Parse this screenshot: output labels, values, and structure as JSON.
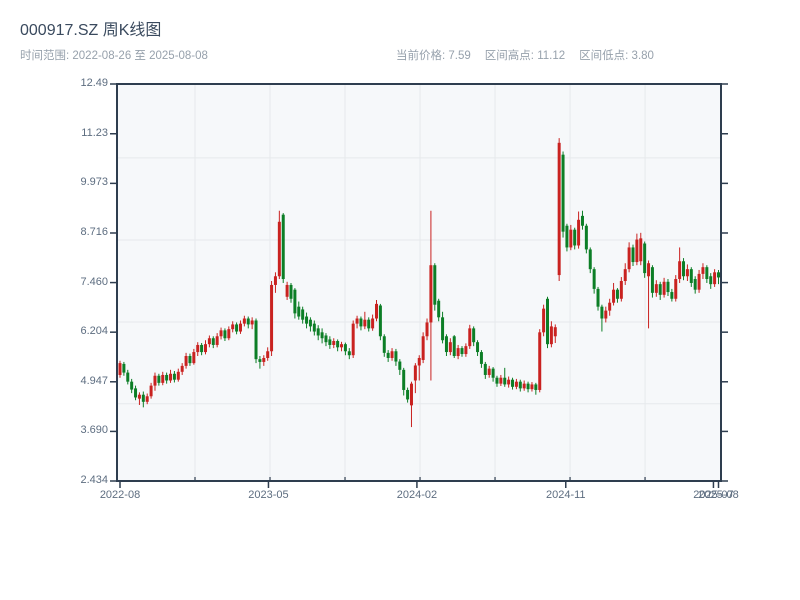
{
  "header": {
    "title": "000917.SZ 周K线图",
    "subtitle": "时间范围: 2022-08-26 至 2025-08-08",
    "stats": [
      {
        "label": "当前价格:",
        "value": "7.59"
      },
      {
        "label": "区间高点:",
        "value": "11.12"
      },
      {
        "label": "区间低点:",
        "value": "3.80"
      }
    ]
  },
  "chart_data": {
    "type": "candlestick",
    "title": "000917.SZ 周K线图",
    "symbol": "000917.SZ",
    "period": "weekly",
    "date_range": [
      "2022-08-26",
      "2025-08-08"
    ],
    "current_price": 7.59,
    "range_high": 11.12,
    "range_low": 3.8,
    "ylim": [
      2.434,
      12.49
    ],
    "grid": "on",
    "y_ticks": [
      {
        "label": "12.49",
        "value": 12.49
      },
      {
        "label": "11.23",
        "value": 11.23
      },
      {
        "label": "9.973",
        "value": 9.973
      },
      {
        "label": "8.716",
        "value": 8.716
      },
      {
        "label": "7.460",
        "value": 7.46
      },
      {
        "label": "6.204",
        "value": 6.204
      },
      {
        "label": "4.947",
        "value": 4.947
      },
      {
        "label": "3.690",
        "value": 3.69
      },
      {
        "label": "2.434",
        "value": 2.434
      }
    ],
    "x_ticks": [
      {
        "label": "2022-08",
        "week": 0
      },
      {
        "label": "2023-05",
        "week": 38.2
      },
      {
        "label": "2024-02",
        "week": 76.4
      },
      {
        "label": "2024-11",
        "week": 114.7
      },
      {
        "label": "2025-07",
        "week": 152.7
      },
      {
        "label": "2025-08",
        "week": 154.0
      }
    ],
    "grid_x_weeks": [
      19.3,
      38.6,
      57.9,
      77.2,
      96.5,
      115.8,
      135.1
    ],
    "grid_y_values": [
      10.62,
      8.54,
      6.46,
      4.39
    ],
    "colors": {
      "up": "#c92220",
      "down": "#0c7e26",
      "axis": "#2e3d4f",
      "grid": "#e6e9ec",
      "plot_bg": "#f6f8fa",
      "label": "#5d6d80"
    },
    "candles_format": [
      "open",
      "high",
      "low",
      "close"
    ],
    "candles": [
      [
        5.12,
        5.48,
        5.05,
        5.42
      ],
      [
        5.4,
        5.45,
        5.1,
        5.18
      ],
      [
        5.18,
        5.25,
        4.88,
        4.95
      ],
      [
        4.95,
        5.02,
        4.66,
        4.75
      ],
      [
        4.78,
        4.85,
        4.48,
        4.55
      ],
      [
        4.52,
        4.68,
        4.36,
        4.62
      ],
      [
        4.62,
        4.7,
        4.3,
        4.44
      ],
      [
        4.44,
        4.65,
        4.38,
        4.58
      ],
      [
        4.58,
        4.92,
        4.52,
        4.85
      ],
      [
        4.85,
        5.18,
        4.72,
        5.1
      ],
      [
        5.1,
        5.15,
        4.85,
        4.92
      ],
      [
        4.92,
        5.2,
        4.86,
        5.12
      ],
      [
        5.12,
        5.18,
        4.9,
        4.98
      ],
      [
        4.98,
        5.25,
        4.92,
        5.15
      ],
      [
        5.15,
        5.22,
        4.93,
        5.0
      ],
      [
        5.0,
        5.28,
        4.95,
        5.2
      ],
      [
        5.2,
        5.42,
        5.12,
        5.35
      ],
      [
        5.35,
        5.68,
        5.28,
        5.6
      ],
      [
        5.6,
        5.66,
        5.35,
        5.42
      ],
      [
        5.42,
        5.78,
        5.38,
        5.7
      ],
      [
        5.7,
        5.95,
        5.6,
        5.88
      ],
      [
        5.88,
        5.93,
        5.62,
        5.7
      ],
      [
        5.7,
        6.0,
        5.64,
        5.9
      ],
      [
        5.9,
        6.12,
        5.82,
        6.05
      ],
      [
        6.05,
        6.1,
        5.8,
        5.88
      ],
      [
        5.88,
        6.18,
        5.82,
        6.1
      ],
      [
        6.1,
        6.32,
        6.02,
        6.25
      ],
      [
        6.25,
        6.3,
        5.98,
        6.05
      ],
      [
        6.05,
        6.35,
        6.0,
        6.28
      ],
      [
        6.28,
        6.48,
        6.2,
        6.4
      ],
      [
        6.4,
        6.45,
        6.15,
        6.22
      ],
      [
        6.22,
        6.5,
        6.16,
        6.42
      ],
      [
        6.42,
        6.62,
        6.35,
        6.55
      ],
      [
        6.55,
        6.6,
        6.3,
        6.4
      ],
      [
        6.4,
        6.58,
        6.28,
        6.5
      ],
      [
        6.5,
        6.55,
        5.42,
        5.52
      ],
      [
        5.52,
        5.6,
        5.28,
        5.45
      ],
      [
        5.45,
        5.62,
        5.35,
        5.55
      ],
      [
        5.55,
        5.82,
        5.48,
        5.72
      ],
      [
        5.72,
        7.5,
        5.6,
        7.4
      ],
      [
        7.4,
        7.72,
        7.2,
        7.62
      ],
      [
        7.62,
        9.28,
        7.55,
        9.0
      ],
      [
        9.18,
        9.22,
        7.45,
        7.55
      ],
      [
        7.1,
        7.48,
        7.02,
        7.4
      ],
      [
        7.4,
        7.45,
        6.95,
        7.05
      ],
      [
        7.28,
        7.32,
        6.55,
        6.68
      ],
      [
        6.85,
        6.98,
        6.52,
        6.6
      ],
      [
        6.78,
        6.85,
        6.42,
        6.52
      ],
      [
        6.6,
        6.7,
        6.3,
        6.42
      ],
      [
        6.52,
        6.58,
        6.22,
        6.35
      ],
      [
        6.42,
        6.5,
        6.12,
        6.22
      ],
      [
        6.3,
        6.38,
        6.0,
        6.12
      ],
      [
        6.2,
        6.3,
        5.92,
        6.05
      ],
      [
        6.12,
        6.18,
        5.85,
        5.95
      ],
      [
        6.02,
        6.1,
        5.78,
        5.88
      ],
      [
        5.88,
        6.05,
        5.8,
        5.98
      ],
      [
        5.98,
        6.02,
        5.72,
        5.82
      ],
      [
        5.82,
        5.96,
        5.72,
        5.9
      ],
      [
        5.9,
        5.94,
        5.62,
        5.72
      ],
      [
        5.72,
        5.8,
        5.52,
        5.62
      ],
      [
        5.62,
        6.5,
        5.55,
        6.42
      ],
      [
        6.42,
        6.62,
        6.3,
        6.55
      ],
      [
        6.55,
        6.6,
        6.25,
        6.35
      ],
      [
        6.35,
        6.72,
        6.28,
        6.52
      ],
      [
        6.52,
        6.58,
        6.22,
        6.3
      ],
      [
        6.3,
        6.65,
        6.24,
        6.55
      ],
      [
        6.55,
        7.02,
        6.48,
        6.92
      ],
      [
        6.88,
        6.92,
        6.0,
        6.1
      ],
      [
        6.1,
        6.15,
        5.58,
        5.68
      ],
      [
        5.68,
        5.75,
        5.45,
        5.55
      ],
      [
        5.55,
        5.8,
        5.48,
        5.72
      ],
      [
        5.72,
        5.78,
        5.35,
        5.46
      ],
      [
        5.46,
        5.52,
        5.12,
        5.25
      ],
      [
        5.25,
        5.3,
        4.6,
        4.74
      ],
      [
        4.74,
        4.8,
        4.42,
        4.5
      ],
      [
        4.35,
        4.95,
        3.8,
        4.9
      ],
      [
        4.98,
        5.42,
        4.66,
        5.36
      ],
      [
        5.36,
        5.62,
        4.98,
        5.55
      ],
      [
        5.5,
        6.2,
        5.42,
        6.1
      ],
      [
        6.1,
        6.55,
        6.0,
        6.45
      ],
      [
        6.45,
        9.28,
        4.98,
        7.9
      ],
      [
        7.9,
        7.95,
        6.75,
        6.9
      ],
      [
        7.0,
        7.05,
        6.48,
        6.58
      ],
      [
        6.58,
        6.72,
        5.92,
        6.0
      ],
      [
        6.1,
        6.15,
        5.6,
        5.7
      ],
      [
        5.7,
        6.05,
        5.62,
        5.95
      ],
      [
        6.1,
        6.13,
        5.55,
        5.6
      ],
      [
        5.6,
        5.88,
        5.52,
        5.8
      ],
      [
        5.8,
        5.85,
        5.58,
        5.65
      ],
      [
        5.65,
        5.92,
        5.58,
        5.85
      ],
      [
        5.85,
        6.39,
        5.78,
        6.3
      ],
      [
        6.3,
        6.35,
        5.85,
        5.95
      ],
      [
        5.95,
        6.0,
        5.6,
        5.7
      ],
      [
        5.7,
        5.75,
        5.3,
        5.4
      ],
      [
        5.4,
        5.45,
        5.02,
        5.12
      ],
      [
        5.12,
        5.35,
        5.05,
        5.28
      ],
      [
        5.28,
        5.32,
        4.95,
        5.05
      ],
      [
        5.05,
        5.1,
        4.82,
        4.9
      ],
      [
        4.9,
        5.12,
        4.84,
        5.05
      ],
      [
        5.05,
        5.3,
        4.82,
        4.88
      ],
      [
        4.88,
        5.08,
        4.8,
        5.0
      ],
      [
        5.0,
        5.05,
        4.75,
        4.82
      ],
      [
        4.82,
        5.02,
        4.76,
        4.95
      ],
      [
        4.95,
        5.0,
        4.7,
        4.78
      ],
      [
        4.78,
        4.98,
        4.72,
        4.9
      ],
      [
        4.9,
        4.95,
        4.68,
        4.76
      ],
      [
        4.76,
        4.94,
        4.7,
        4.88
      ],
      [
        4.88,
        4.92,
        4.62,
        4.74
      ],
      [
        4.74,
        6.28,
        4.68,
        6.2
      ],
      [
        6.2,
        6.9,
        6.1,
        6.8
      ],
      [
        7.05,
        7.1,
        5.8,
        5.9
      ],
      [
        5.9,
        6.48,
        5.82,
        6.35
      ],
      [
        6.1,
        6.4,
        5.93,
        6.33
      ],
      [
        7.65,
        11.12,
        7.5,
        11.0
      ],
      [
        10.7,
        10.78,
        8.6,
        8.75
      ],
      [
        8.9,
        8.95,
        8.25,
        8.35
      ],
      [
        8.35,
        8.92,
        8.28,
        8.8
      ],
      [
        8.8,
        8.85,
        8.3,
        8.4
      ],
      [
        8.4,
        9.26,
        8.32,
        9.05
      ],
      [
        9.15,
        9.28,
        8.8,
        8.9
      ],
      [
        8.9,
        8.95,
        8.2,
        8.3
      ],
      [
        8.3,
        8.35,
        7.7,
        7.8
      ],
      [
        7.8,
        7.85,
        7.18,
        7.3
      ],
      [
        7.3,
        7.35,
        6.75,
        6.85
      ],
      [
        6.85,
        6.9,
        6.22,
        6.55
      ],
      [
        6.55,
        6.85,
        6.45,
        6.75
      ],
      [
        6.75,
        7.05,
        6.62,
        6.95
      ],
      [
        6.95,
        7.45,
        6.88,
        7.28
      ],
      [
        7.28,
        7.32,
        6.95,
        7.05
      ],
      [
        7.05,
        7.6,
        6.98,
        7.5
      ],
      [
        7.5,
        7.95,
        7.4,
        7.8
      ],
      [
        7.8,
        8.48,
        7.72,
        8.35
      ],
      [
        8.35,
        8.42,
        7.88,
        7.98
      ],
      [
        7.98,
        8.7,
        7.9,
        8.55
      ],
      [
        8.0,
        8.72,
        7.9,
        8.58
      ],
      [
        8.45,
        8.5,
        7.58,
        7.7
      ],
      [
        7.62,
        8.02,
        6.3,
        7.95
      ],
      [
        7.85,
        7.9,
        7.08,
        7.2
      ],
      [
        7.2,
        7.52,
        7.1,
        7.42
      ],
      [
        7.42,
        7.48,
        7.02,
        7.15
      ],
      [
        7.15,
        7.58,
        7.08,
        7.48
      ],
      [
        7.48,
        7.55,
        7.12,
        7.22
      ],
      [
        7.22,
        7.3,
        6.98,
        7.05
      ],
      [
        7.05,
        7.65,
        6.98,
        7.55
      ],
      [
        7.55,
        8.35,
        7.45,
        8.0
      ],
      [
        8.0,
        8.08,
        7.52,
        7.62
      ],
      [
        7.62,
        7.92,
        7.5,
        7.8
      ],
      [
        7.8,
        7.85,
        7.35,
        7.45
      ],
      [
        7.55,
        7.62,
        7.18,
        7.28
      ],
      [
        7.28,
        7.78,
        7.2,
        7.68
      ],
      [
        7.68,
        7.95,
        7.55,
        7.85
      ],
      [
        7.85,
        7.9,
        7.45,
        7.55
      ],
      [
        7.62,
        7.7,
        7.3,
        7.42
      ],
      [
        7.42,
        7.8,
        7.35,
        7.72
      ],
      [
        7.72,
        7.78,
        7.42,
        7.59
      ]
    ]
  }
}
